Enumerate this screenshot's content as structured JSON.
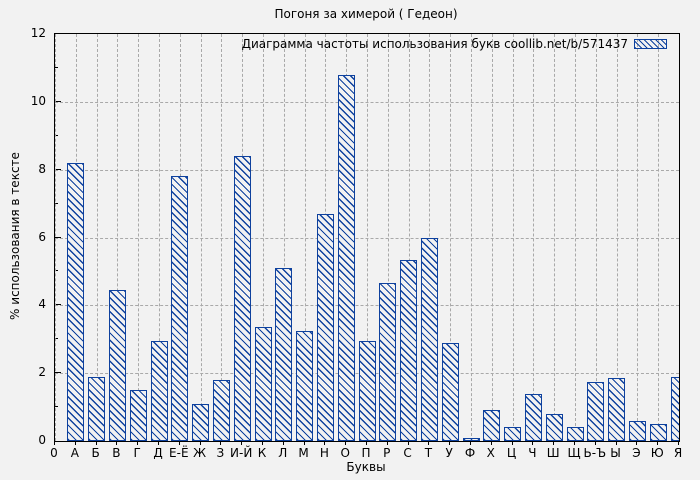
{
  "chart_data": {
    "type": "bar",
    "title": "Погоня за химерой ( Гедеон)",
    "legend": "Диаграмма частоты использования букв coollib.net/b/571437",
    "legend_position": "top-right-inside",
    "xlabel": "Буквы",
    "ylabel": "% использования в тексте",
    "x_origin_label": "0",
    "categories": [
      "А",
      "Б",
      "В",
      "Г",
      "Д",
      "Е-Ё",
      "Ж",
      "З",
      "И-Й",
      "К",
      "Л",
      "М",
      "Н",
      "О",
      "П",
      "Р",
      "С",
      "Т",
      "У",
      "Ф",
      "Х",
      "Ц",
      "Ч",
      "Ш",
      "Щ",
      "Ь-Ъ",
      "Ы",
      "Э",
      "Ю",
      "Я"
    ],
    "values": [
      8.2,
      1.9,
      4.45,
      1.5,
      2.95,
      7.8,
      1.1,
      1.8,
      8.4,
      3.35,
      5.1,
      3.25,
      6.7,
      10.8,
      2.95,
      4.65,
      5.35,
      6.0,
      2.9,
      0.1,
      0.9,
      0.4,
      1.4,
      0.8,
      0.4,
      1.75,
      1.85,
      0.6,
      0.5,
      1.9
    ],
    "ylim": [
      0,
      12
    ],
    "y_ticks": [
      0,
      2,
      4,
      6,
      8,
      10,
      12
    ],
    "grid": true,
    "hatch": "diagonal-down",
    "colors": {
      "bar": "#0e419e",
      "grid": "#a9a9a9",
      "background": "#f2f2f2",
      "border": "#000000",
      "text": "#000000"
    }
  }
}
